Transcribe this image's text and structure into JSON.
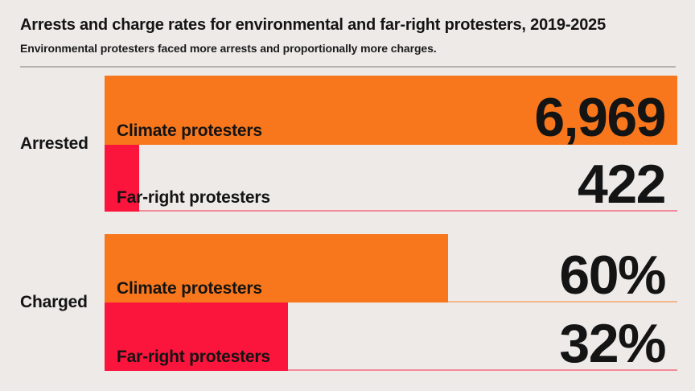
{
  "header": {
    "title": "Arrests and charge rates for environmental and far-right protesters, 2019-2025",
    "subtitle": "Environmental protesters faced more arrests and proportionally more charges."
  },
  "colors": {
    "background": "#EDEAE8",
    "orange": "#F8771C",
    "red": "#FB143C",
    "text": "#141414",
    "divider": "#B5B2AF"
  },
  "chart_data": {
    "type": "bar",
    "orientation": "horizontal",
    "title": "Arrests and charge rates for environmental and far-right protesters, 2019-2025",
    "subtitle": "Environmental protesters faced more arrests and proportionally more charges.",
    "legend": "none",
    "grid": "off",
    "groups": [
      {
        "label": "Arrested",
        "axis_max": 6969,
        "rows": [
          {
            "label": "Climate protesters",
            "value": 6969,
            "display": "6,969",
            "color": "orange"
          },
          {
            "label": "Far-right protesters",
            "value": 422,
            "display": "422",
            "color": "red"
          }
        ]
      },
      {
        "label": "Charged",
        "axis_max": 100,
        "rows": [
          {
            "label": "Climate protesters",
            "value": 60,
            "display": "60%",
            "color": "orange"
          },
          {
            "label": "Far-right protesters",
            "value": 32,
            "display": "32%",
            "color": "red"
          }
        ]
      }
    ]
  }
}
